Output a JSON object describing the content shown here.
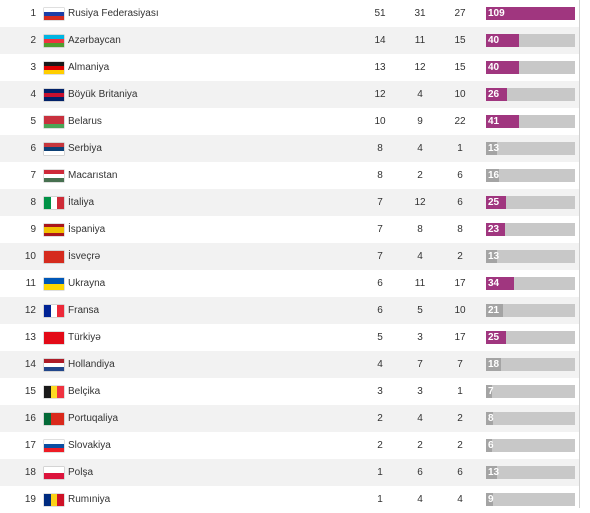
{
  "colors": {
    "bar_accent": "#a0367f",
    "bar_small": "#a4a4a4",
    "bar_track": "#c8c8c8",
    "row_alt": "#f2f2f2"
  },
  "medal_max": 109,
  "rows": [
    {
      "rank": "1",
      "country": "Rusiya Federasiyası",
      "gold": "51",
      "silver": "31",
      "bronze": "27",
      "total": "109",
      "total_value": 109,
      "flag_icon": "russia-flag-icon",
      "flag": {
        "dir": "h",
        "stripes": [
          "#ffffff",
          "#1c3fa8",
          "#d52b1e"
        ]
      }
    },
    {
      "rank": "2",
      "country": "Azərbaycan",
      "gold": "14",
      "silver": "11",
      "bronze": "15",
      "total": "40",
      "total_value": 40,
      "flag_icon": "azerbaijan-flag-icon",
      "flag": {
        "dir": "h",
        "stripes": [
          "#00b5e2",
          "#ef3340",
          "#509e2f"
        ]
      }
    },
    {
      "rank": "3",
      "country": "Almaniya",
      "gold": "13",
      "silver": "12",
      "bronze": "15",
      "total": "40",
      "total_value": 40,
      "flag_icon": "germany-flag-icon",
      "flag": {
        "dir": "h",
        "stripes": [
          "#1a1a1a",
          "#dd0000",
          "#ffce00"
        ]
      }
    },
    {
      "rank": "4",
      "country": "Böyük Britaniya",
      "gold": "12",
      "silver": "4",
      "bronze": "10",
      "total": "26",
      "total_value": 26,
      "flag_icon": "uk-flag-icon",
      "flag": {
        "dir": "h",
        "stripes": [
          "#012169",
          "#c8102e",
          "#012169"
        ]
      }
    },
    {
      "rank": "5",
      "country": "Belarus",
      "gold": "10",
      "silver": "9",
      "bronze": "22",
      "total": "41",
      "total_value": 41,
      "flag_icon": "belarus-flag-icon",
      "flag": {
        "dir": "h",
        "stripes": [
          "#c8313e",
          "#c8313e",
          "#4aa657"
        ]
      }
    },
    {
      "rank": "6",
      "country": "Serbiya",
      "gold": "8",
      "silver": "4",
      "bronze": "1",
      "total": "13",
      "total_value": 13,
      "flag_icon": "serbia-flag-icon",
      "flag": {
        "dir": "h",
        "stripes": [
          "#c6363c",
          "#0c4076",
          "#ffffff"
        ]
      }
    },
    {
      "rank": "7",
      "country": "Macarıstan",
      "gold": "8",
      "silver": "2",
      "bronze": "6",
      "total": "16",
      "total_value": 16,
      "flag_icon": "hungary-flag-icon",
      "flag": {
        "dir": "h",
        "stripes": [
          "#ce2939",
          "#ffffff",
          "#477050"
        ]
      }
    },
    {
      "rank": "8",
      "country": "İtaliya",
      "gold": "7",
      "silver": "12",
      "bronze": "6",
      "total": "25",
      "total_value": 25,
      "flag_icon": "italy-flag-icon",
      "flag": {
        "dir": "v",
        "stripes": [
          "#009246",
          "#ffffff",
          "#ce2b37"
        ]
      }
    },
    {
      "rank": "9",
      "country": "İspaniya",
      "gold": "7",
      "silver": "8",
      "bronze": "8",
      "total": "23",
      "total_value": 23,
      "flag_icon": "spain-flag-icon",
      "flag": {
        "dir": "h",
        "stripes": [
          "#aa151b",
          "#f1bf00",
          "#f1bf00",
          "#aa151b"
        ]
      }
    },
    {
      "rank": "10",
      "country": "İsveçrə",
      "gold": "7",
      "silver": "4",
      "bronze": "2",
      "total": "13",
      "total_value": 13,
      "flag_icon": "switzerland-flag-icon",
      "flag": {
        "dir": "h",
        "stripes": [
          "#d52b1e"
        ]
      }
    },
    {
      "rank": "11",
      "country": "Ukrayna",
      "gold": "6",
      "silver": "11",
      "bronze": "17",
      "total": "34",
      "total_value": 34,
      "flag_icon": "ukraine-flag-icon",
      "flag": {
        "dir": "h",
        "stripes": [
          "#0057b7",
          "#ffd700"
        ]
      }
    },
    {
      "rank": "12",
      "country": "Fransa",
      "gold": "6",
      "silver": "5",
      "bronze": "10",
      "total": "21",
      "total_value": 21,
      "flag_icon": "france-flag-icon",
      "flag": {
        "dir": "v",
        "stripes": [
          "#002395",
          "#ffffff",
          "#ed2939"
        ]
      }
    },
    {
      "rank": "13",
      "country": "Türkiyə",
      "gold": "5",
      "silver": "3",
      "bronze": "17",
      "total": "25",
      "total_value": 25,
      "flag_icon": "turkey-flag-icon",
      "flag": {
        "dir": "h",
        "stripes": [
          "#e30a17"
        ]
      }
    },
    {
      "rank": "14",
      "country": "Hollandiya",
      "gold": "4",
      "silver": "7",
      "bronze": "7",
      "total": "18",
      "total_value": 18,
      "flag_icon": "netherlands-flag-icon",
      "flag": {
        "dir": "h",
        "stripes": [
          "#ae1c28",
          "#ffffff",
          "#21468b"
        ]
      }
    },
    {
      "rank": "15",
      "country": "Belçika",
      "gold": "3",
      "silver": "3",
      "bronze": "1",
      "total": "7",
      "total_value": 7,
      "flag_icon": "belgium-flag-icon",
      "flag": {
        "dir": "v",
        "stripes": [
          "#1a1a1a",
          "#fdda24",
          "#ef3340"
        ]
      }
    },
    {
      "rank": "16",
      "country": "Portuqaliya",
      "gold": "2",
      "silver": "4",
      "bronze": "2",
      "total": "8",
      "total_value": 8,
      "flag_icon": "portugal-flag-icon",
      "flag": {
        "dir": "v",
        "stripes": [
          "#046a38",
          "#da291c",
          "#da291c"
        ]
      }
    },
    {
      "rank": "17",
      "country": "Slovakiya",
      "gold": "2",
      "silver": "2",
      "bronze": "2",
      "total": "6",
      "total_value": 6,
      "flag_icon": "slovakia-flag-icon",
      "flag": {
        "dir": "h",
        "stripes": [
          "#ffffff",
          "#0b4ea2",
          "#ee1c25"
        ]
      }
    },
    {
      "rank": "18",
      "country": "Polşa",
      "gold": "1",
      "silver": "6",
      "bronze": "6",
      "total": "13",
      "total_value": 13,
      "flag_icon": "poland-flag-icon",
      "flag": {
        "dir": "h",
        "stripes": [
          "#ffffff",
          "#dc143c"
        ]
      }
    },
    {
      "rank": "19",
      "country": "Rumıniya",
      "gold": "1",
      "silver": "4",
      "bronze": "4",
      "total": "9",
      "total_value": 9,
      "flag_icon": "romania-flag-icon",
      "flag": {
        "dir": "v",
        "stripes": [
          "#002b7f",
          "#fcd116",
          "#ce1126"
        ]
      }
    }
  ]
}
